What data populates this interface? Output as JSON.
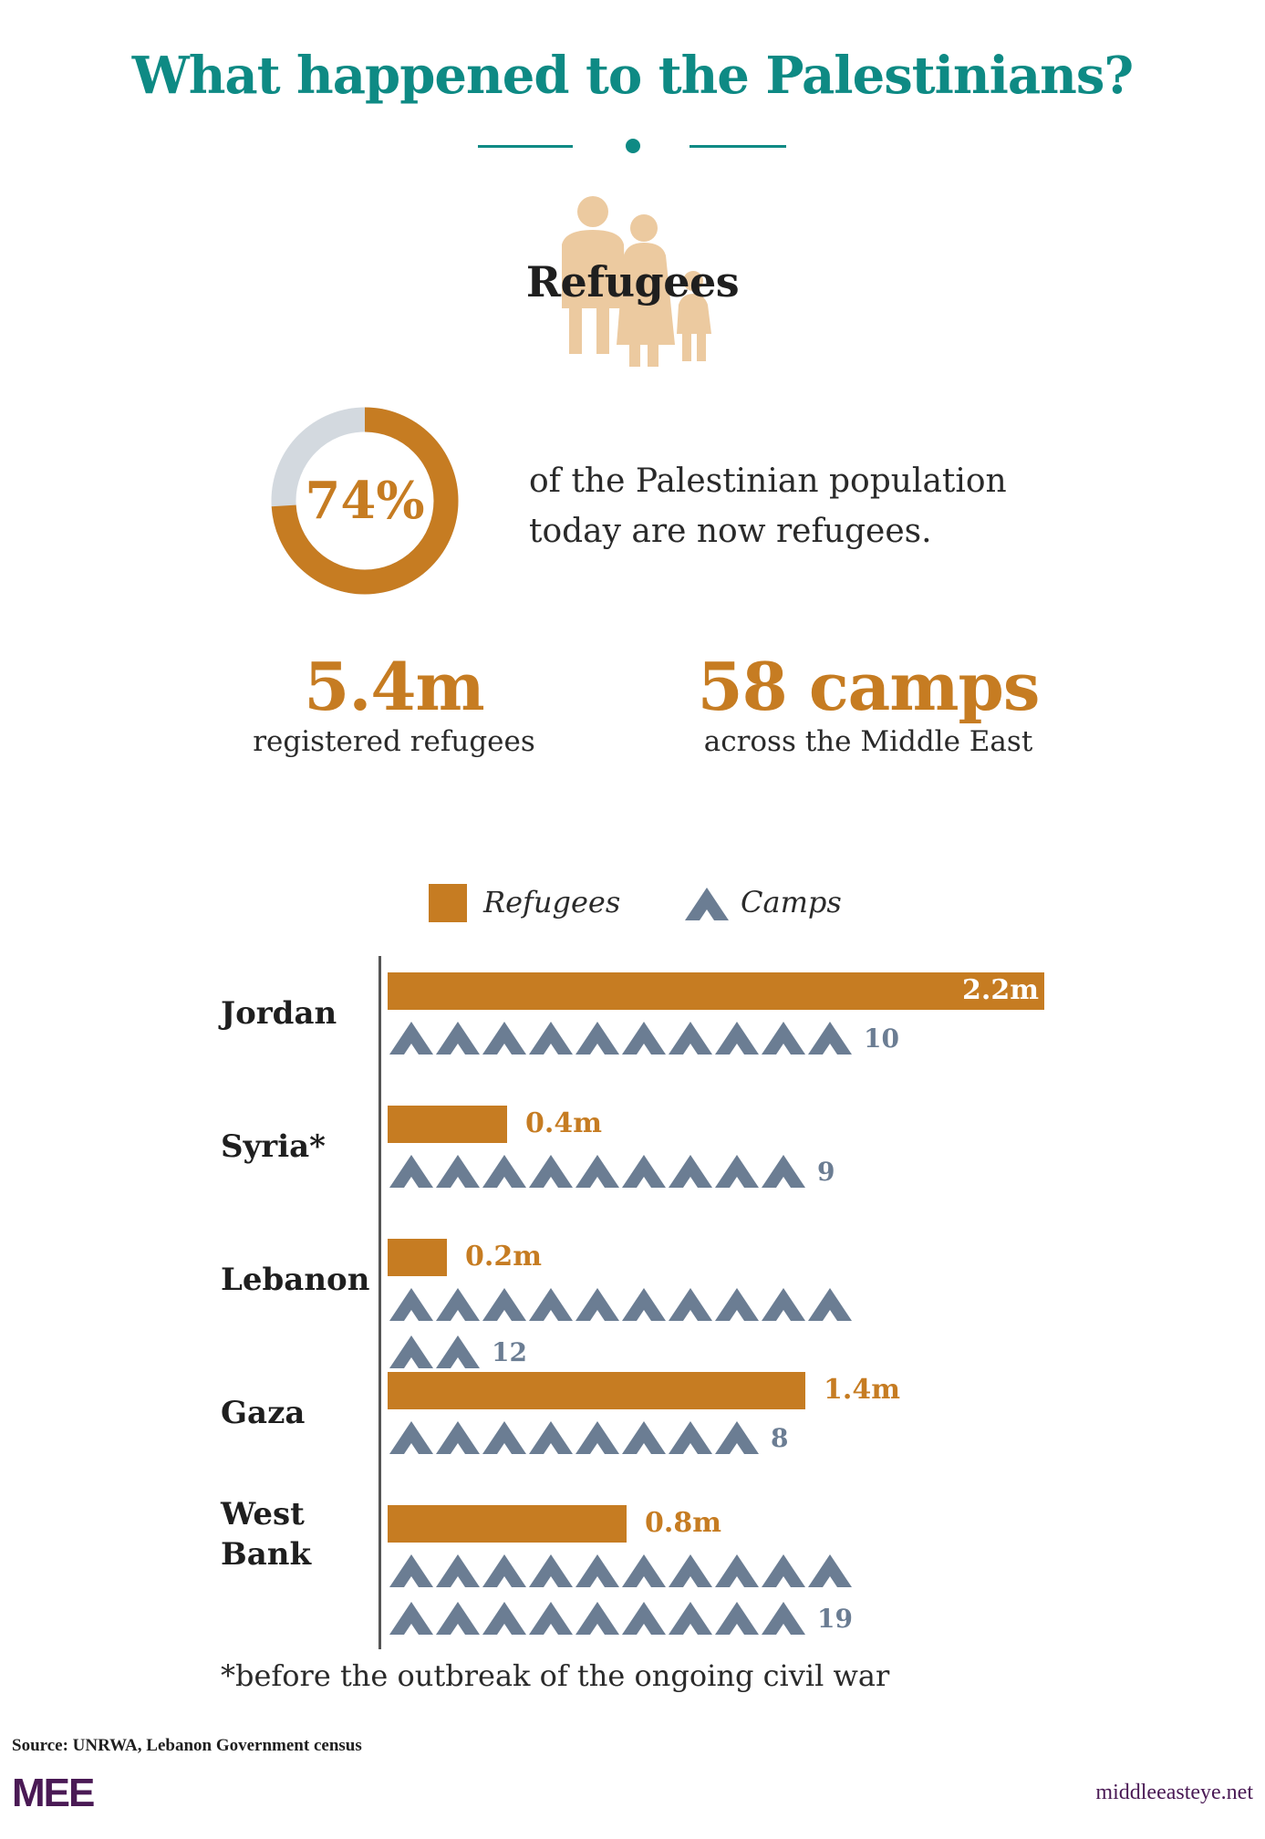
{
  "title": "What happened to the Palestinians?",
  "section_title": "Refugees",
  "donut": {
    "percent": 74,
    "label": "74%",
    "text_line1": "of the Palestinian population",
    "text_line2": "today are now refugees.",
    "fill_color": "#c67c22",
    "track_color": "#d3d9df"
  },
  "stats": [
    {
      "value": "5.4m",
      "label": "registered refugees"
    },
    {
      "value": "58 camps",
      "label": "across the Middle East"
    }
  ],
  "legend": {
    "refugees": "Refugees",
    "camps": "Camps"
  },
  "chart_data": {
    "type": "bar",
    "categories": [
      "Jordan",
      "Syria*",
      "Lebanon",
      "Gaza",
      "West Bank"
    ],
    "series": [
      {
        "name": "Refugees",
        "unit": "m",
        "values": [
          2.2,
          0.4,
          0.2,
          1.4,
          0.8
        ],
        "labels": [
          "2.2m",
          "0.4m",
          "0.2m",
          "1.4m",
          "0.8m"
        ]
      },
      {
        "name": "Camps",
        "values": [
          10,
          9,
          12,
          8,
          19
        ],
        "labels": [
          "10",
          "9",
          "12",
          "8",
          "19"
        ]
      }
    ],
    "colors": {
      "refugees": "#c67c22",
      "camps": "#6b7d93"
    }
  },
  "footnote": "*before the outbreak of the ongoing civil war",
  "source": "Source: UNRWA, Lebanon Government census",
  "logo_text": "MEE",
  "url": "middleeasteye.net"
}
